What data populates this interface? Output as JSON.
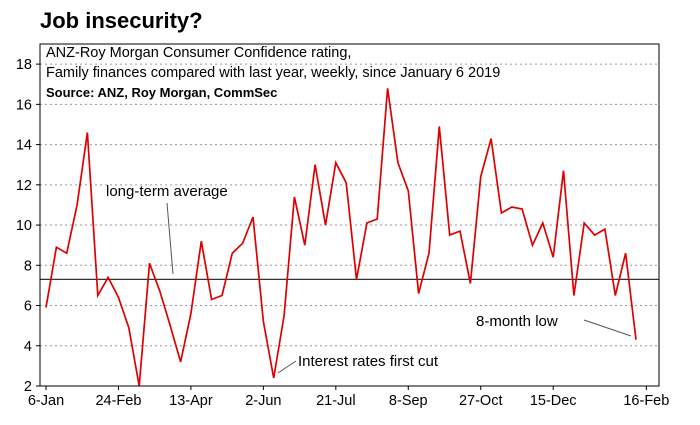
{
  "chart_data": {
    "type": "line",
    "title": "Job insecurity?",
    "subtitle_lines": [
      "ANZ-Roy Morgan Consumer Confidence rating,",
      "Family finances compared with last year, weekly, since January 6 2019"
    ],
    "source": "Source: ANZ, Roy Morgan, CommSec",
    "ylim": [
      2,
      19
    ],
    "yticks": [
      2,
      4,
      6,
      8,
      10,
      12,
      14,
      16,
      18
    ],
    "y_tick_labels": [
      "2",
      "4",
      "6",
      "8",
      "10",
      "12",
      "14",
      "16",
      "18"
    ],
    "x_tick_labels": [
      "6-Jan",
      "24-Feb",
      "13-Apr",
      "2-Jun",
      "21-Jul",
      "8-Sep",
      "27-Oct",
      "15-Dec",
      "16-Feb"
    ],
    "x_tick_indices": [
      0,
      7,
      14,
      21,
      28,
      35,
      42,
      49,
      58
    ],
    "grid": true,
    "average_line": 7.3,
    "series": [
      {
        "color": "#e00000",
        "values": [
          5.9,
          8.9,
          8.6,
          11.0,
          14.6,
          6.5,
          7.4,
          6.4,
          4.9,
          2.0,
          8.1,
          6.7,
          5.0,
          3.2,
          5.6,
          9.2,
          6.3,
          6.5,
          8.6,
          9.1,
          10.4,
          5.2,
          2.4,
          5.5,
          11.4,
          9.0,
          13.0,
          10.0,
          13.1,
          12.1,
          7.3,
          10.1,
          10.3,
          16.8,
          13.1,
          11.7,
          6.6,
          8.6,
          14.9,
          9.5,
          9.7,
          7.1,
          12.4,
          14.3,
          10.6,
          10.9,
          10.8,
          9.0,
          10.1,
          8.4,
          12.7,
          6.5,
          10.1,
          9.5,
          9.8,
          6.5,
          8.6,
          4.3
        ]
      }
    ],
    "annotations": [
      {
        "text": "long-term average"
      },
      {
        "text": "Interest rates first cut"
      },
      {
        "text": "8-month low"
      }
    ]
  }
}
